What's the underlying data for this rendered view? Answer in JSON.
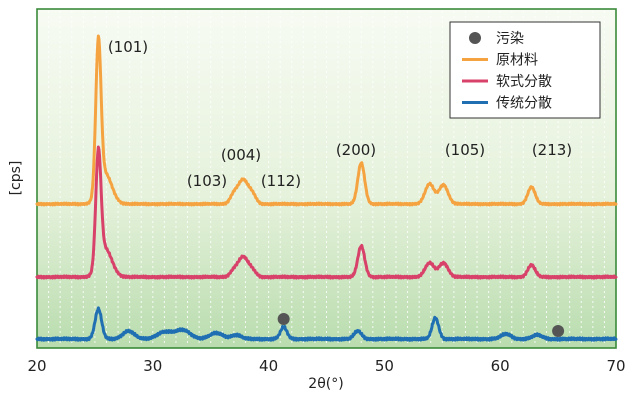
{
  "chart_data": {
    "type": "line",
    "xlabel": "2θ(°)",
    "ylabel": "[cps]",
    "xlim": [
      20,
      70
    ],
    "x_ticks": [
      "20",
      "30",
      "40",
      "50",
      "60",
      "70"
    ],
    "grid": "vertical dotted lines",
    "legend_position": "top-right",
    "series": [
      {
        "name": "原材料",
        "color": "#f5a340",
        "baseline": 204,
        "noise": 0.6,
        "peaks": [
          {
            "x": 25.3,
            "h": 150,
            "w": 0.32
          },
          {
            "x": 25.9,
            "h": 30,
            "w": 0.8
          },
          {
            "x": 37.0,
            "h": 9,
            "w": 0.45
          },
          {
            "x": 37.8,
            "h": 24,
            "w": 0.6
          },
          {
            "x": 38.6,
            "h": 9,
            "w": 0.45
          },
          {
            "x": 48.0,
            "h": 41,
            "w": 0.42
          },
          {
            "x": 53.9,
            "h": 20,
            "w": 0.55
          },
          {
            "x": 55.1,
            "h": 19,
            "w": 0.55
          },
          {
            "x": 62.7,
            "h": 17,
            "w": 0.45
          }
        ]
      },
      {
        "name": "软式分散",
        "color": "#d8416a",
        "baseline": 277,
        "noise": 0.7,
        "peaks": [
          {
            "x": 25.3,
            "h": 113,
            "w": 0.32
          },
          {
            "x": 25.9,
            "h": 28,
            "w": 0.8
          },
          {
            "x": 37.0,
            "h": 6,
            "w": 0.45
          },
          {
            "x": 37.8,
            "h": 20,
            "w": 0.6
          },
          {
            "x": 38.6,
            "h": 6,
            "w": 0.45
          },
          {
            "x": 48.0,
            "h": 31,
            "w": 0.42
          },
          {
            "x": 53.9,
            "h": 14,
            "w": 0.55
          },
          {
            "x": 55.1,
            "h": 14,
            "w": 0.55
          },
          {
            "x": 62.7,
            "h": 12,
            "w": 0.45
          }
        ]
      },
      {
        "name": "传统分散",
        "color": "#1f6fb2",
        "baseline": 339,
        "noise": 0.8,
        "peaks": [
          {
            "x": 25.3,
            "h": 30,
            "w": 0.4
          },
          {
            "x": 27.9,
            "h": 8,
            "w": 0.7
          },
          {
            "x": 31.0,
            "h": 7,
            "w": 0.9
          },
          {
            "x": 32.6,
            "h": 9,
            "w": 0.9
          },
          {
            "x": 35.5,
            "h": 6,
            "w": 0.8
          },
          {
            "x": 37.2,
            "h": 4,
            "w": 0.6
          },
          {
            "x": 41.3,
            "h": 12,
            "w": 0.4
          },
          {
            "x": 47.7,
            "h": 8,
            "w": 0.45
          },
          {
            "x": 54.4,
            "h": 21,
            "w": 0.4
          },
          {
            "x": 60.5,
            "h": 5,
            "w": 0.6
          },
          {
            "x": 63.2,
            "h": 4,
            "w": 0.6
          }
        ]
      }
    ],
    "contamination": {
      "name": "污染",
      "color": "#555555",
      "points": [
        {
          "x": 41.3,
          "level": "above 传统分散 peak"
        },
        {
          "x": 65.0,
          "level": "above 传统分散 baseline"
        }
      ]
    },
    "peak_labels": [
      {
        "text": "(101)",
        "x": 25.3
      },
      {
        "text": "(004)",
        "x": 37.8
      },
      {
        "text": "(103)",
        "x": 36.5
      },
      {
        "text": "(112)",
        "x": 39.0
      },
      {
        "text": "(200)",
        "x": 48.0
      },
      {
        "text": "(105)",
        "x": 54.5
      },
      {
        "text": "(213)",
        "x": 62.7
      }
    ]
  }
}
